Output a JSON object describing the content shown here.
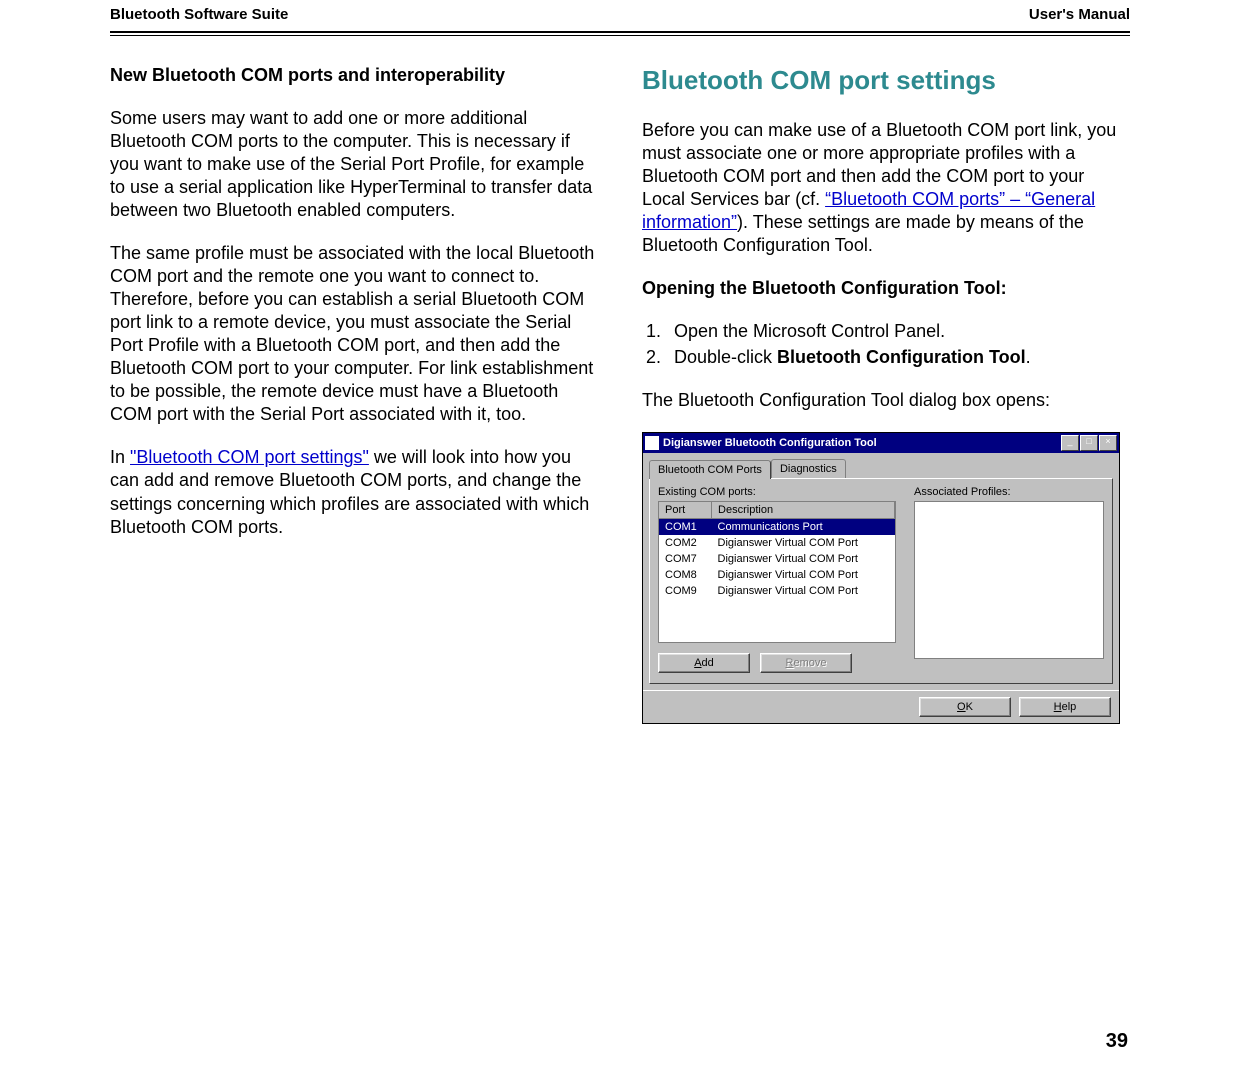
{
  "header": {
    "left": "Bluetooth Software Suite",
    "right": "User's Manual"
  },
  "page_number": "39",
  "colors": {
    "section_heading": "#2d8a8f",
    "link": "#0000cc",
    "win_titlebar_bg": "#000080",
    "win_bg": "#c0c0c0",
    "selection_bg": "#000080"
  },
  "left_column": {
    "heading": "New Bluetooth COM ports and interoperability",
    "p1": "Some users may want to add one or more additional Bluetooth COM ports to the computer. This is necessary if you want to make use of the Serial Port Profile, for example to use a serial application like HyperTerminal to transfer data between two Bluetooth enabled computers.",
    "p2": "The same profile must be associated with the local Bluetooth COM port and the remote one you want to connect to. Therefore, before you can establish a serial Bluetooth COM port link to a remote device, you must associate the Serial Port Profile with a Bluetooth COM port, and then add the Bluetooth COM port to your computer. For link establishment to be possible, the remote device must have a Bluetooth COM port with the Serial Port associated with it, too.",
    "p3_pre": "In ",
    "p3_link": "\"Bluetooth COM port settings\"",
    "p3_post": " we will look into how you can add and remove Bluetooth COM ports, and change the settings concerning which profiles are associated with which Bluetooth COM ports."
  },
  "right_column": {
    "section_heading": "Bluetooth COM port settings",
    "p1_pre": "Before you can make use of a Bluetooth COM port link, you must associate one or more appropriate profiles with a Bluetooth COM port and then add the COM port to your Local Services bar (cf. ",
    "p1_link": "“Bluetooth COM ports” – “General information”",
    "p1_post": "). These settings are made by means of the Bluetooth Configuration Tool.",
    "open_heading": "Opening the Bluetooth Configuration Tool:",
    "steps": {
      "s1": "Open the Microsoft Control Panel.",
      "s2_pre": "Double-click ",
      "s2_bold": "Bluetooth Configuration Tool",
      "s2_post": "."
    },
    "after_steps": "The Bluetooth Configuration Tool dialog box opens:"
  },
  "dialog": {
    "title": "Digianswer Bluetooth Configuration Tool",
    "tabs": {
      "active": "Bluetooth COM Ports",
      "other": "Diagnostics"
    },
    "labels": {
      "existing": "Existing COM ports:",
      "profiles": "Associated Profiles:"
    },
    "columns": {
      "port": "Port",
      "desc": "Description"
    },
    "rows": [
      {
        "port": "COM1",
        "desc": "Communications Port",
        "selected": true
      },
      {
        "port": "COM2",
        "desc": "Digianswer Virtual COM Port",
        "selected": false
      },
      {
        "port": "COM7",
        "desc": "Digianswer Virtual COM Port",
        "selected": false
      },
      {
        "port": "COM8",
        "desc": "Digianswer Virtual COM Port",
        "selected": false
      },
      {
        "port": "COM9",
        "desc": "Digianswer Virtual COM Port",
        "selected": false
      }
    ],
    "buttons": {
      "add": "Add",
      "remove": "Remove",
      "ok": "OK",
      "help": "Help",
      "minimize": "_",
      "maximize": "□",
      "close": "×"
    }
  }
}
